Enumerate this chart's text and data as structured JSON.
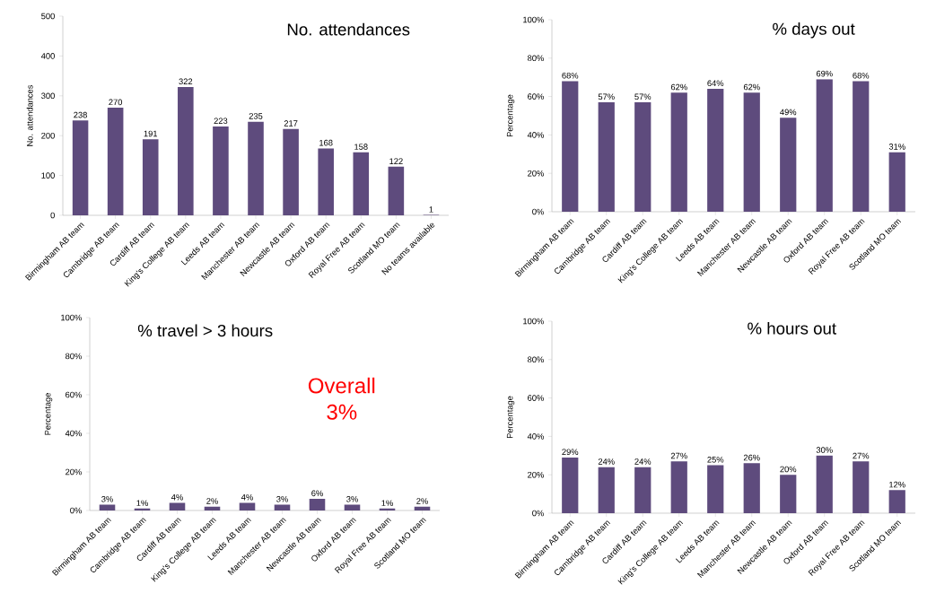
{
  "chart_data": [
    {
      "type": "bar",
      "title": "No. attendances",
      "ylabel": "No. attendances",
      "categories": [
        "Birmingham AB team",
        "Cambridge AB team",
        "Cardiff AB team",
        "King's College AB team",
        "Leeds AB team",
        "Manchester AB team",
        "Newcastle AB team",
        "Oxford AB team",
        "Royal Free AB team",
        "Scotland MO team",
        "No teams available"
      ],
      "values": [
        238,
        270,
        191,
        322,
        223,
        235,
        217,
        168,
        158,
        122,
        1
      ],
      "color": "#5e4b7d",
      "ylim": [
        0,
        500
      ],
      "yticks": [
        0,
        100,
        200,
        300,
        400,
        500
      ],
      "data_labels": true
    },
    {
      "type": "bar",
      "title": "% days out",
      "ylabel": "Percentage",
      "categories": [
        "Birmingham AB team",
        "Cambridge AB team",
        "Cardiff AB team",
        "King's College AB team",
        "Leeds AB team",
        "Manchester AB team",
        "Newcastle AB team",
        "Oxford AB team",
        "Royal Free AB team",
        "Scotland MO team"
      ],
      "values": [
        68,
        57,
        57,
        62,
        64,
        62,
        49,
        69,
        68,
        31
      ],
      "color": "#5e4b7d",
      "value_labels": [
        "68%",
        "57%",
        "57%",
        "62%",
        "64%",
        "62%",
        "49%",
        "69%",
        "68%",
        "31%"
      ],
      "ylim": [
        0,
        100
      ],
      "yticks": [
        {
          "value": 0,
          "label": "0%"
        },
        {
          "value": 20,
          "label": "20%"
        },
        {
          "value": 40,
          "label": "40%"
        },
        {
          "value": 60,
          "label": "60%"
        },
        {
          "value": 80,
          "label": "80%"
        },
        {
          "value": 100,
          "label": "100%"
        }
      ]
    },
    {
      "type": "bar",
      "title": "% travel > 3 hours",
      "ylabel": "Percentage",
      "categories": [
        "Birmingham AB team",
        "Cambridge AB team",
        "Cardiff AB team",
        "King's College AB team",
        "Leeds AB team",
        "Manchester AB team",
        "Newcastle AB team",
        "Oxford AB team",
        "Royal Free AB team",
        "Scotland MO team"
      ],
      "values": [
        3,
        1,
        4,
        2,
        4,
        3,
        6,
        3,
        1,
        2
      ],
      "color": "#5e4b7d",
      "value_labels": [
        "3%",
        "1%",
        "4%",
        "2%",
        "4%",
        "3%",
        "6%",
        "3%",
        "1%",
        "2%"
      ],
      "ylim": [
        0,
        100
      ],
      "yticks": [
        {
          "value": 0,
          "label": "0%"
        },
        {
          "value": 20,
          "label": "20%"
        },
        {
          "value": 40,
          "label": "40%"
        },
        {
          "value": 60,
          "label": "60%"
        },
        {
          "value": 80,
          "label": "80%"
        },
        {
          "value": 100,
          "label": "100%"
        }
      ],
      "annotations": [
        "Overall 3%"
      ]
    },
    {
      "type": "bar",
      "title": "% hours out",
      "ylabel": "Percentage",
      "categories": [
        "Birmingham AB team",
        "Cambridge AB team",
        "Cardiff AB team",
        "King's College AB team",
        "Leeds AB team",
        "Manchester AB team",
        "Newcastle AB team",
        "Oxford AB team",
        "Royal Free AB team",
        "Scotland MO team"
      ],
      "values": [
        29,
        24,
        24,
        27,
        25,
        26,
        20,
        30,
        27,
        12
      ],
      "color": "#5e4b7d",
      "value_labels": [
        "29%",
        "24%",
        "24%",
        "27%",
        "25%",
        "26%",
        "20%",
        "30%",
        "27%",
        "12%"
      ],
      "ylim": [
        0,
        100
      ],
      "yticks": [
        {
          "value": 0,
          "label": "0%"
        },
        {
          "value": 20,
          "label": "20%"
        },
        {
          "value": 40,
          "label": "40%"
        },
        {
          "value": 60,
          "label": "60%"
        },
        {
          "value": 80,
          "label": "80%"
        },
        {
          "value": 100,
          "label": "100%"
        }
      ]
    }
  ]
}
